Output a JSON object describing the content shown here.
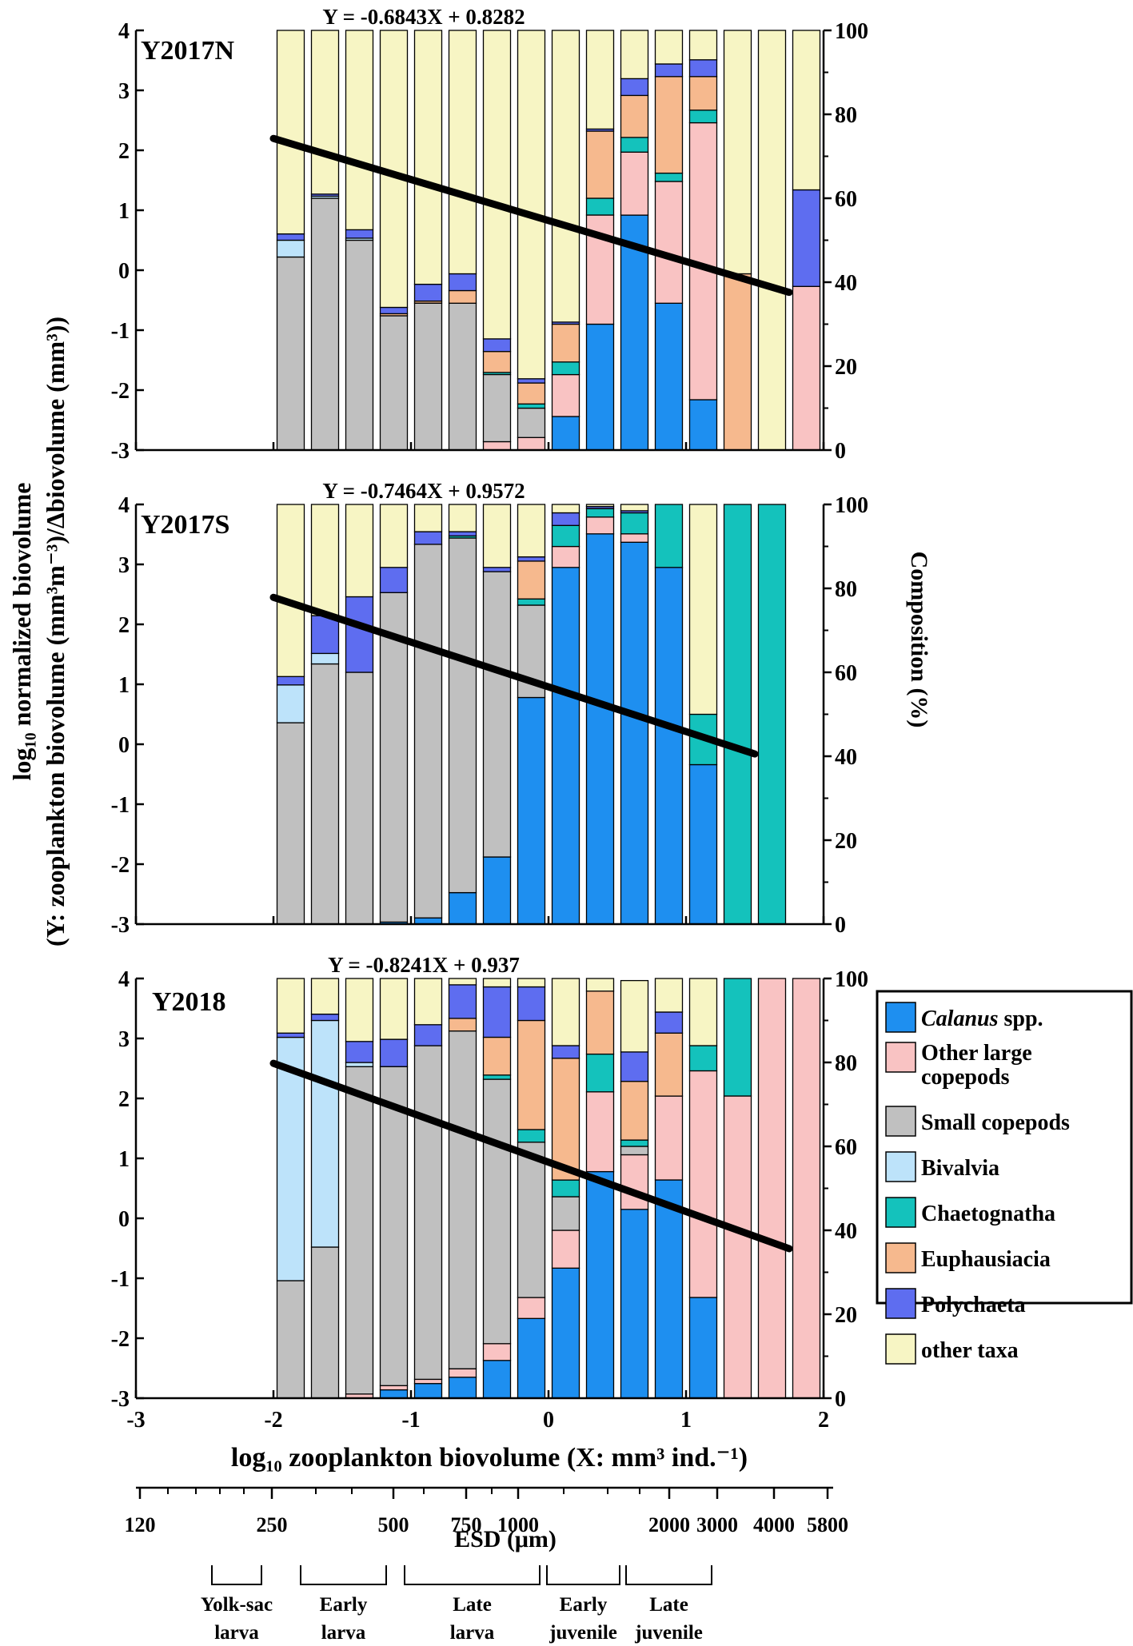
{
  "figure": {
    "y_axis_label_line1": "log₁₀ normalized biovolume",
    "y_axis_label_line2": "(Y: zooplankton biovolume (mm³m⁻³)/Δbiovolume (mm³))",
    "right_axis_label": "Composition (%)",
    "x_axis_label": "log₁₀ zooplankton biovolume (X: mm³ ind.⁻¹)",
    "esd_label": "ESD  (μm)",
    "esd_ticks": [
      "120",
      "250",
      "500",
      "750",
      "1000",
      "2000",
      "3000",
      "4000",
      "5800"
    ],
    "stages": [
      {
        "line1": "Yolk-sac",
        "line2": "larva"
      },
      {
        "line1": "Early",
        "line2": "larva"
      },
      {
        "line1": "Late",
        "line2": "larva"
      },
      {
        "line1": "Early",
        "line2": "juvenile"
      },
      {
        "line1": "Late",
        "line2": "juvenile"
      }
    ]
  },
  "legend": {
    "items": [
      {
        "label": "Calanus spp.",
        "color": "#1e8ff0"
      },
      {
        "label": "Other large copepods",
        "color": "#f9c3c3"
      },
      {
        "label": "Small copepods",
        "color": "#c0c0c0"
      },
      {
        "label": "Bivalvia",
        "color": "#bde3fa"
      },
      {
        "label": "Chaetognatha",
        "color": "#14c2bc"
      },
      {
        "label": "Euphausiacia",
        "color": "#f6b98e"
      },
      {
        "label": "Polychaeta",
        "color": "#5e6df0"
      },
      {
        "label": "other taxa",
        "color": "#f7f5c4"
      }
    ]
  },
  "chart_data": [
    {
      "type": "bar",
      "panel": "Y2017N",
      "equation": "Y = -0.6843X + 0.8282",
      "x": [
        -1.875,
        -1.625,
        -1.375,
        -1.125,
        -0.875,
        -0.625,
        -0.375,
        -0.125,
        0.125,
        0.375,
        0.625,
        0.875,
        1.125,
        1.375,
        1.625,
        1.875
      ],
      "xlim": [
        -3,
        2
      ],
      "ylim": [
        -3,
        4
      ],
      "y2lim": [
        0,
        100
      ],
      "regression": {
        "x": [
          -2.0,
          1.75
        ],
        "y": [
          2.197,
          -0.369
        ]
      },
      "x_ticks": [
        "-3",
        "-2",
        "-1",
        "0",
        "1",
        "2"
      ],
      "y_ticks": [
        "-3",
        "-2",
        "-1",
        "0",
        "1",
        "2",
        "3",
        "4"
      ],
      "y2_ticks": [
        "0",
        "20",
        "40",
        "60",
        "80",
        "100"
      ],
      "series": [
        {
          "name": "Calanus spp.",
          "values": [
            0,
            0,
            0,
            0,
            0,
            0,
            0,
            0,
            8,
            30,
            56,
            35,
            12,
            0,
            0,
            0
          ]
        },
        {
          "name": "Other large copepods",
          "values": [
            0,
            0,
            0,
            0,
            0,
            0,
            2,
            3,
            10,
            26,
            15,
            29,
            66,
            0,
            0,
            39
          ]
        },
        {
          "name": "Small copepods",
          "values": [
            46,
            60,
            50,
            32,
            35,
            35,
            16,
            7,
            0,
            0,
            0,
            0,
            0,
            0,
            0,
            0
          ]
        },
        {
          "name": "Bivalvia",
          "values": [
            4,
            0.5,
            0.5,
            0,
            0,
            0,
            0,
            0,
            0,
            0,
            0,
            0,
            0,
            0,
            0,
            0
          ]
        },
        {
          "name": "Chaetognatha",
          "values": [
            0,
            0,
            0,
            0,
            0,
            0,
            0.5,
            1,
            3,
            4,
            3.5,
            2,
            3,
            0,
            0,
            0
          ]
        },
        {
          "name": "Euphausiacia",
          "values": [
            0,
            0,
            0,
            0.5,
            0.5,
            3,
            5,
            5,
            9,
            16,
            10,
            23,
            8,
            42,
            0,
            0
          ]
        },
        {
          "name": "Polychaeta",
          "values": [
            1.5,
            0.5,
            2,
            1.5,
            4,
            4,
            3,
            1,
            0.5,
            0.5,
            4,
            3,
            4,
            0,
            0,
            23
          ]
        },
        {
          "name": "other taxa",
          "values": [
            48.5,
            39,
            47.5,
            66,
            60.5,
            58,
            73.5,
            83,
            69.5,
            23.5,
            11.5,
            8,
            7,
            58,
            100,
            38
          ]
        }
      ]
    },
    {
      "type": "bar",
      "panel": "Y2017S",
      "equation": "Y = -0.7464X + 0.9572",
      "x": [
        -1.875,
        -1.625,
        -1.375,
        -1.125,
        -0.875,
        -0.625,
        -0.375,
        -0.125,
        0.125,
        0.375,
        0.625,
        0.875,
        1.125,
        1.375,
        1.625
      ],
      "xlim": [
        -3,
        2
      ],
      "ylim": [
        -3,
        4
      ],
      "y2lim": [
        0,
        100
      ],
      "regression": {
        "x": [
          -2.0,
          1.5
        ],
        "y": [
          2.45,
          -0.162
        ]
      },
      "x_ticks": [
        "-3",
        "-2",
        "-1",
        "0",
        "1",
        "2"
      ],
      "y_ticks": [
        "-3",
        "-2",
        "-1",
        "0",
        "1",
        "2",
        "3",
        "4"
      ],
      "y2_ticks": [
        "0",
        "20",
        "40",
        "60",
        "80",
        "100"
      ],
      "series": [
        {
          "name": "Calanus spp.",
          "values": [
            0,
            0,
            0,
            0.5,
            1.5,
            7.5,
            16,
            54,
            85,
            93,
            91,
            85,
            38,
            0,
            0
          ]
        },
        {
          "name": "Other large copepods",
          "values": [
            0,
            0,
            0,
            0,
            0,
            0,
            0,
            0,
            5,
            4,
            2,
            0,
            0,
            0,
            0
          ]
        },
        {
          "name": "Small copepods",
          "values": [
            48,
            62,
            60,
            78.5,
            89,
            84.5,
            68,
            22,
            0,
            0,
            0,
            0,
            0,
            0,
            0
          ]
        },
        {
          "name": "Bivalvia",
          "values": [
            9,
            2.5,
            0,
            0,
            0,
            0,
            0,
            0,
            0,
            0,
            0,
            0,
            0,
            0,
            0
          ]
        },
        {
          "name": "Chaetognatha",
          "values": [
            0,
            0,
            0,
            0,
            0,
            0.5,
            0,
            1.5,
            5,
            2,
            5,
            15,
            12,
            100,
            100
          ]
        },
        {
          "name": "Euphausiacia",
          "values": [
            0,
            0,
            0,
            0,
            0,
            0,
            0,
            9,
            0,
            0,
            0,
            0,
            0,
            0,
            0
          ]
        },
        {
          "name": "Polychaeta",
          "values": [
            2,
            9,
            18,
            6,
            3,
            1,
            1,
            1,
            3,
            0.5,
            0.5,
            0,
            0,
            0,
            0
          ]
        },
        {
          "name": "other taxa",
          "values": [
            41,
            26.5,
            22,
            15,
            6.5,
            6.5,
            15,
            12.5,
            2,
            0.5,
            1.5,
            0,
            50,
            0,
            0
          ]
        }
      ]
    },
    {
      "type": "bar",
      "panel": "Y2018",
      "equation": "Y = -0.8241X + 0.937",
      "x": [
        -1.875,
        -1.625,
        -1.375,
        -1.125,
        -0.875,
        -0.625,
        -0.375,
        -0.125,
        0.125,
        0.375,
        0.625,
        0.875,
        1.125,
        1.375,
        1.625,
        1.875
      ],
      "xlim": [
        -3,
        2
      ],
      "ylim": [
        -3,
        4
      ],
      "y2lim": [
        0,
        100
      ],
      "regression": {
        "x": [
          -2.0,
          1.75
        ],
        "y": [
          2.585,
          -0.506
        ]
      },
      "x_ticks": [
        "-3",
        "-2",
        "-1",
        "0",
        "1",
        "2"
      ],
      "y_ticks": [
        "-3",
        "-2",
        "-1",
        "0",
        "1",
        "2",
        "3",
        "4"
      ],
      "y2_ticks": [
        "0",
        "20",
        "40",
        "60",
        "80",
        "100"
      ],
      "series": [
        {
          "name": "Calanus spp.",
          "values": [
            0,
            0,
            0,
            2,
            3.5,
            5,
            9,
            19,
            31,
            54,
            45,
            52,
            24,
            0,
            0,
            0
          ]
        },
        {
          "name": "Other large copepods",
          "values": [
            0,
            0,
            1,
            1,
            1,
            2,
            4,
            5,
            9,
            19,
            13,
            20,
            54,
            72,
            100,
            100
          ]
        },
        {
          "name": "Small copepods",
          "values": [
            28,
            36,
            78,
            76,
            79.5,
            80.5,
            63,
            37,
            8,
            0,
            2,
            0,
            0,
            0,
            0,
            0
          ]
        },
        {
          "name": "Bivalvia",
          "values": [
            58,
            54,
            1,
            0,
            0,
            0,
            0,
            0,
            0,
            0,
            0,
            0,
            0,
            0,
            0,
            0
          ]
        },
        {
          "name": "Chaetognatha",
          "values": [
            0,
            0,
            0,
            0,
            0,
            0,
            1,
            3,
            4,
            9,
            1.5,
            0,
            6,
            28,
            0,
            0
          ]
        },
        {
          "name": "Euphausiacia",
          "values": [
            0,
            0,
            0,
            0,
            0,
            3,
            9,
            26,
            29,
            15,
            14,
            15,
            0,
            0,
            0,
            0
          ]
        },
        {
          "name": "Polychaeta",
          "values": [
            1,
            1.5,
            5,
            6.5,
            5,
            8,
            12,
            8,
            3,
            0,
            7,
            5,
            0,
            0,
            0,
            0
          ]
        },
        {
          "name": "other taxa",
          "values": [
            13,
            8.5,
            15,
            14.5,
            11,
            1.5,
            2,
            2,
            16,
            3,
            17,
            8,
            16,
            0,
            0,
            0
          ]
        }
      ]
    }
  ]
}
